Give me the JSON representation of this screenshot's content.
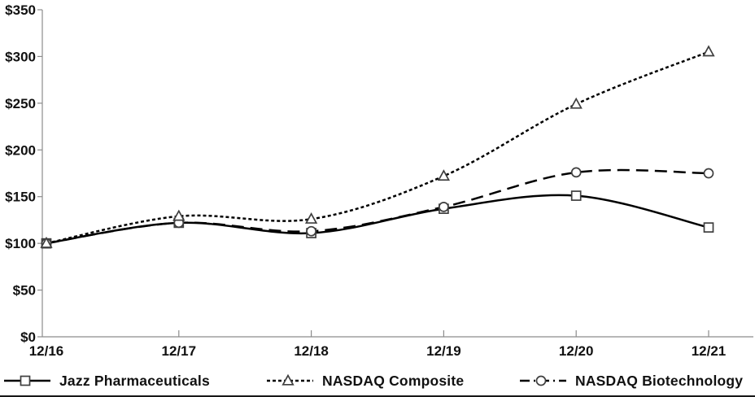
{
  "chart_data": {
    "type": "line",
    "title": "",
    "xlabel": "",
    "ylabel": "",
    "categories": [
      "12/16",
      "12/17",
      "12/18",
      "12/19",
      "12/20",
      "12/21"
    ],
    "y_tick_labels": [
      "$0",
      "$50",
      "$100",
      "$150",
      "$200",
      "$250",
      "$300",
      "$350"
    ],
    "ylim": [
      0,
      350
    ],
    "y_step": 50,
    "grid": false,
    "legend_position": "bottom",
    "series": [
      {
        "name": "Jazz Pharmaceuticals",
        "marker": "square",
        "dash": "solid",
        "values": [
          100,
          122,
          111,
          137,
          151,
          117
        ]
      },
      {
        "name": "NASDAQ Composite",
        "marker": "triangle",
        "dash": "short-dash",
        "values": [
          100,
          129,
          126,
          172,
          249,
          305
        ]
      },
      {
        "name": "NASDAQ Biotechnology",
        "marker": "circle",
        "dash": "long-dash",
        "values": [
          100,
          122,
          113,
          139,
          176,
          175
        ]
      }
    ],
    "colors": {
      "line": "#000000",
      "marker_stroke": "#3f3f3f",
      "marker_fill": "#ffffff",
      "axis": "#8c8c8c",
      "text": "#111111"
    }
  }
}
